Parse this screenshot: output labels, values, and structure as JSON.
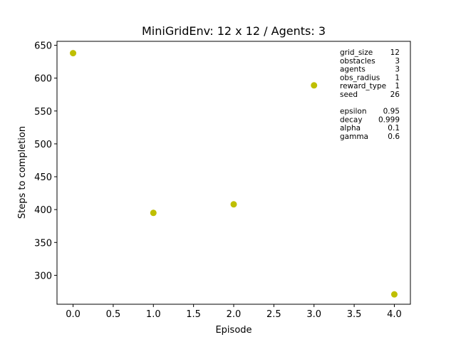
{
  "chart_data": {
    "type": "scatter",
    "title": "MiniGridEnv: 12 x 12 / Agents: 3",
    "xlabel": "Episode",
    "ylabel": "Steps to completion",
    "x": [
      0,
      1,
      2,
      3,
      4
    ],
    "y": [
      638,
      395,
      408,
      589,
      271
    ],
    "marker_color": "#bfbf00",
    "xlim": [
      -0.2,
      4.2
    ],
    "ylim": [
      256,
      656
    ],
    "xticks": [
      0.0,
      0.5,
      1.0,
      1.5,
      2.0,
      2.5,
      3.0,
      3.5,
      4.0
    ],
    "xtick_labels": [
      "0.0",
      "0.5",
      "1.0",
      "1.5",
      "2.0",
      "2.5",
      "3.0",
      "3.5",
      "4.0"
    ],
    "yticks": [
      300,
      350,
      400,
      450,
      500,
      550,
      600,
      650
    ],
    "ytick_labels": [
      "300",
      "350",
      "400",
      "450",
      "500",
      "550",
      "600",
      "650"
    ],
    "grid": false,
    "annotations": {
      "env_params": [
        {
          "key": "grid_size",
          "value": "12"
        },
        {
          "key": "obstacles",
          "value": "3"
        },
        {
          "key": "agents",
          "value": "3"
        },
        {
          "key": "obs_radius",
          "value": "1"
        },
        {
          "key": "reward_type",
          "value": "1"
        },
        {
          "key": "seed",
          "value": "26"
        }
      ],
      "agent_params": [
        {
          "key": "epsilon",
          "value": "0.95"
        },
        {
          "key": "decay",
          "value": "0.999"
        },
        {
          "key": "alpha",
          "value": "0.1"
        },
        {
          "key": "gamma",
          "value": "0.6"
        }
      ]
    }
  }
}
